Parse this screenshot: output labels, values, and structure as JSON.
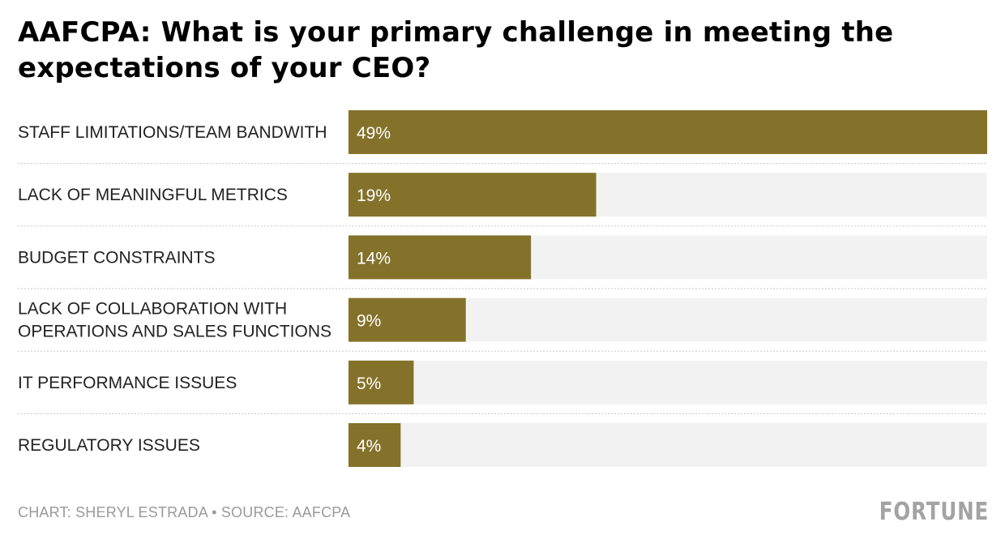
{
  "chart_data": {
    "type": "bar",
    "orientation": "horizontal",
    "title": "AAFCPA: What is your primary challenge in meeting the expectations of your CEO?",
    "categories": [
      [
        "STAFF LIMITATIONS/TEAM BANDWITH"
      ],
      [
        "LACK OF MEANINGFUL METRICS"
      ],
      [
        "BUDGET CONSTRAINTS"
      ],
      [
        "LACK OF COLLABORATION WITH",
        "OPERATIONS AND SALES FUNCTIONS"
      ],
      [
        "IT PERFORMANCE ISSUES"
      ],
      [
        "REGULATORY ISSUES"
      ]
    ],
    "values": [
      49,
      19,
      14,
      9,
      5,
      4
    ],
    "value_labels": [
      "49%",
      "19%",
      "14%",
      "9%",
      "5%",
      "4%"
    ],
    "xlim": [
      0,
      49
    ],
    "unit": "%",
    "grid": false,
    "bar_color": "#84722a",
    "track_color": "#f2f2f2"
  },
  "footer": {
    "credit": "CHART: SHERYL ESTRADA • SOURCE: AAFCPA",
    "brand": "FORTUNE"
  }
}
